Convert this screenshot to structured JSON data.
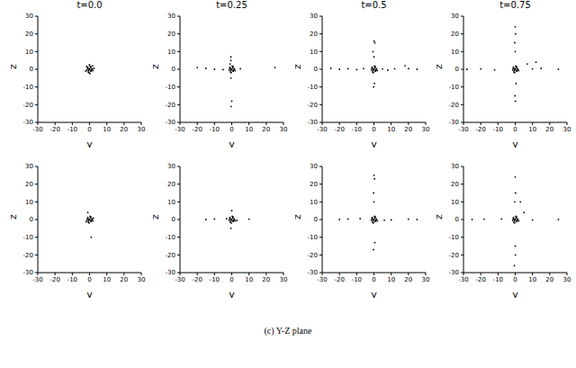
{
  "chart_data": [
    {
      "type": "scatter",
      "title": "t=0.0",
      "x_label": "y",
      "y_label": "z",
      "xlim": [
        -30,
        30
      ],
      "ylim": [
        -30,
        30
      ],
      "xticks": [
        -30,
        -20,
        -10,
        0,
        10,
        20,
        30
      ],
      "yticks": [
        -30,
        -20,
        -10,
        0,
        10,
        20,
        30
      ],
      "series": [
        {
          "color": "#000000",
          "marker": "point",
          "x": [
            0,
            0.5,
            -0.5,
            1,
            -1,
            1.5,
            -1.5,
            0.3,
            -0.8,
            0.8,
            -0.3,
            1.2,
            -1.2,
            0.6,
            -0.6,
            2,
            2.5,
            -2.2,
            1.8,
            -1.7,
            0.2,
            -0.1
          ],
          "values": [
            0,
            0.8,
            -0.6,
            -1,
            1.2,
            0.3,
            -0.4,
            1.8,
            -1.5,
            1.4,
            -1.9,
            -0.2,
            0.5,
            -0.9,
            0.2,
            -0.7,
            0.5,
            -1,
            2,
            1.6,
            -2.4,
            2.6
          ]
        }
      ]
    },
    {
      "type": "scatter",
      "title": "t=0.25",
      "x_label": "y",
      "y_label": "z",
      "xlim": [
        -30,
        30
      ],
      "ylim": [
        -30,
        30
      ],
      "xticks": [
        -30,
        -20,
        -10,
        0,
        10,
        20,
        30
      ],
      "yticks": [
        -30,
        -20,
        -10,
        0,
        10,
        20,
        30
      ],
      "series": [
        {
          "color": "#000000",
          "marker": "point",
          "x": [
            0,
            0.5,
            -0.5,
            1,
            -1,
            1.5,
            -1.5,
            0.3,
            -0.8,
            0.8,
            -0.3,
            1.2,
            -1.2,
            0.6,
            -0.6,
            2,
            -20,
            -15,
            -10,
            25,
            5,
            -5,
            -0.5,
            -0.5,
            -0.5,
            0,
            -0.3,
            -1
          ],
          "values": [
            0,
            0.8,
            -0.6,
            -1,
            1.2,
            0.3,
            -0.4,
            1.8,
            -1.5,
            1.4,
            -1.9,
            -0.2,
            0.5,
            -0.9,
            0.2,
            -0.7,
            1,
            0.5,
            0,
            1,
            0.3,
            -0.2,
            7,
            5,
            -5,
            -18,
            -21,
            3
          ]
        }
      ]
    },
    {
      "type": "scatter",
      "title": "t=0.5",
      "x_label": "y",
      "y_label": "z",
      "xlim": [
        -30,
        30
      ],
      "ylim": [
        -30,
        30
      ],
      "xticks": [
        -30,
        -20,
        -10,
        0,
        10,
        20,
        30
      ],
      "yticks": [
        -30,
        -20,
        -10,
        0,
        10,
        20,
        30
      ],
      "series": [
        {
          "color": "#000000",
          "marker": "point",
          "x": [
            0,
            0.5,
            -0.5,
            1,
            -1,
            1.5,
            -1.5,
            0.3,
            -0.8,
            0.8,
            -0.3,
            1.2,
            -1.2,
            0.6,
            -0.6,
            2,
            -25,
            -20,
            -15,
            -10,
            -6,
            5,
            8,
            12,
            20,
            25,
            0,
            0.5,
            -0.5,
            0,
            0.3,
            -0.2,
            18
          ],
          "values": [
            0,
            0.8,
            -0.6,
            -1,
            1.2,
            0.3,
            -0.4,
            1.8,
            -1.5,
            1.4,
            -1.9,
            -0.2,
            0.5,
            -0.9,
            0.2,
            -0.7,
            0.5,
            0,
            0.3,
            -0.2,
            0.4,
            0.2,
            -0.5,
            0.3,
            0.4,
            0,
            16,
            15,
            10,
            7,
            -8,
            -10,
            2
          ]
        }
      ]
    },
    {
      "type": "scatter",
      "title": "t=0.75",
      "x_label": "y",
      "y_label": "z",
      "xlim": [
        -30,
        30
      ],
      "ylim": [
        -30,
        30
      ],
      "xticks": [
        -30,
        -20,
        -10,
        0,
        10,
        20,
        30
      ],
      "yticks": [
        -30,
        -20,
        -10,
        0,
        10,
        20,
        30
      ],
      "series": [
        {
          "color": "#000000",
          "marker": "point",
          "x": [
            0,
            0.5,
            -0.5,
            1,
            -1,
            1.5,
            -1.5,
            0.3,
            -0.8,
            0.8,
            -0.3,
            1.2,
            -1.2,
            0.6,
            -0.6,
            2,
            -28,
            -20,
            -12,
            10,
            15,
            25,
            7,
            12,
            0,
            0.2,
            -0.3,
            0,
            0.1,
            -0.2,
            0.5
          ],
          "values": [
            0,
            0.8,
            -0.6,
            -1,
            1.2,
            0.3,
            -0.4,
            1.8,
            -1.5,
            1.4,
            -1.9,
            -0.2,
            0.5,
            -0.9,
            0.2,
            -0.7,
            0,
            0.2,
            -0.3,
            0.2,
            0.5,
            0,
            3,
            4,
            24,
            20,
            15,
            10,
            -18,
            -15,
            -8
          ]
        }
      ]
    },
    {
      "type": "scatter",
      "x_label": "y",
      "y_label": "z",
      "xlim": [
        -30,
        30
      ],
      "ylim": [
        -30,
        30
      ],
      "xticks": [
        -30,
        -20,
        -10,
        0,
        10,
        20,
        30
      ],
      "yticks": [
        -30,
        -20,
        -10,
        0,
        10,
        20,
        30
      ],
      "series": [
        {
          "color": "#000000",
          "marker": "point",
          "x": [
            0,
            0.5,
            -0.5,
            1,
            -1,
            1.5,
            -1.5,
            0.3,
            -0.8,
            0.8,
            -0.3,
            1.2,
            -1.2,
            0.6,
            -0.6,
            2,
            -1,
            1,
            2.2,
            -2
          ],
          "values": [
            0,
            0.8,
            -0.6,
            -1,
            1.2,
            0.3,
            -0.4,
            1.8,
            -1.5,
            1.4,
            -1.9,
            -0.2,
            0.5,
            -0.9,
            0.2,
            -0.7,
            4,
            -10,
            0.8,
            -1.2
          ]
        }
      ]
    },
    {
      "type": "scatter",
      "x_label": "y",
      "y_label": "z",
      "xlim": [
        -30,
        30
      ],
      "ylim": [
        -30,
        30
      ],
      "xticks": [
        -30,
        -20,
        -10,
        0,
        10,
        20,
        30
      ],
      "yticks": [
        -30,
        -20,
        -10,
        0,
        10,
        20,
        30
      ],
      "series": [
        {
          "color": "#000000",
          "marker": "point",
          "x": [
            0,
            0.5,
            -0.5,
            1,
            -1,
            1.5,
            -1.5,
            0.3,
            -0.8,
            0.8,
            -0.3,
            1.2,
            -1.2,
            0.6,
            -0.6,
            2,
            -15,
            -10,
            10,
            0,
            -0.5,
            3,
            -3
          ],
          "values": [
            0,
            0.8,
            -0.6,
            -1,
            1.2,
            0.3,
            -0.4,
            1.8,
            -1.5,
            1.4,
            -1.9,
            -0.2,
            0.5,
            -0.9,
            0.2,
            -0.7,
            0,
            0.3,
            0.2,
            5,
            -5,
            -0.5,
            0.5
          ]
        }
      ]
    },
    {
      "type": "scatter",
      "x_label": "y",
      "y_label": "z",
      "xlim": [
        -30,
        30
      ],
      "ylim": [
        -30,
        30
      ],
      "xticks": [
        -30,
        -20,
        -10,
        0,
        10,
        20,
        30
      ],
      "yticks": [
        -30,
        -20,
        -10,
        0,
        10,
        20,
        30
      ],
      "series": [
        {
          "color": "#000000",
          "marker": "point",
          "x": [
            0,
            0.5,
            -0.5,
            1,
            -1,
            1.5,
            -1.5,
            0.3,
            -0.8,
            0.8,
            -0.3,
            1.2,
            -1.2,
            0.6,
            -0.6,
            2,
            0,
            0.3,
            -0.2,
            0,
            0.5,
            -0.3,
            -20,
            -15,
            10,
            20,
            25,
            -8,
            6
          ],
          "values": [
            0,
            0.8,
            -0.6,
            -1,
            1.2,
            0.3,
            -0.4,
            1.8,
            -1.5,
            1.4,
            -1.9,
            -0.2,
            0.5,
            -0.9,
            0.2,
            -0.7,
            25,
            23,
            15,
            10,
            -13,
            -17,
            0,
            0.3,
            -0.2,
            0.2,
            0,
            0.5,
            -0.4
          ]
        }
      ]
    },
    {
      "type": "scatter",
      "x_label": "y",
      "y_label": "z",
      "xlim": [
        -30,
        30
      ],
      "ylim": [
        -30,
        30
      ],
      "xticks": [
        -30,
        -20,
        -10,
        0,
        10,
        20,
        30
      ],
      "yticks": [
        -30,
        -20,
        -10,
        0,
        10,
        20,
        30
      ],
      "series": [
        {
          "color": "#000000",
          "marker": "point",
          "x": [
            0,
            0.5,
            -0.5,
            1,
            -1,
            1.5,
            -1.5,
            0.3,
            -0.8,
            0.8,
            -0.3,
            1.2,
            -1.2,
            0.6,
            -0.6,
            2,
            0,
            0.2,
            -0.3,
            0,
            0.1,
            -0.5,
            -25,
            -18,
            10,
            25,
            3,
            5,
            -8
          ],
          "values": [
            0,
            0.8,
            -0.6,
            -1,
            1.2,
            0.3,
            -0.4,
            1.8,
            -1.5,
            1.4,
            -1.9,
            -0.2,
            0.5,
            -0.9,
            0.2,
            -0.7,
            24,
            15,
            10,
            -15,
            -20,
            -26,
            0,
            0.2,
            -0.3,
            0,
            10,
            4,
            0.3
          ]
        }
      ]
    }
  ],
  "caption": "(c) Y-Z plane"
}
